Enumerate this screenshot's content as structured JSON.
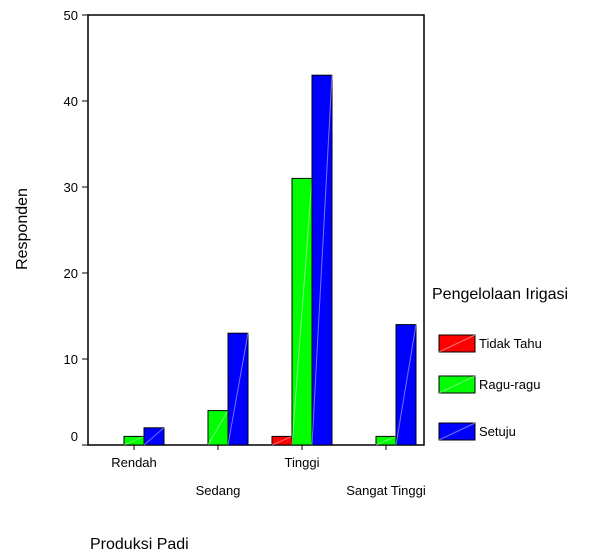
{
  "chart_data": {
    "type": "bar",
    "categories": [
      "Rendah",
      "Sedang",
      "Tinggi",
      "Sangat Tinggi"
    ],
    "series": [
      {
        "name": "Tidak Tahu",
        "values": [
          0,
          0,
          1,
          0
        ],
        "color": "#ff0000"
      },
      {
        "name": "Ragu-ragu",
        "values": [
          1,
          4,
          31,
          1
        ],
        "color": "#00ff00"
      },
      {
        "name": "Setuju",
        "values": [
          2,
          13,
          43,
          14
        ],
        "color": "#0000ff"
      }
    ],
    "xlabel": "Produksi Padi",
    "ylabel": "Responden",
    "ylim": [
      0,
      50
    ],
    "yticks": [
      0,
      10,
      20,
      30,
      40,
      50
    ],
    "legend_title": "Pengelolaan Irigasi",
    "legend_position": "right",
    "grid": false
  }
}
